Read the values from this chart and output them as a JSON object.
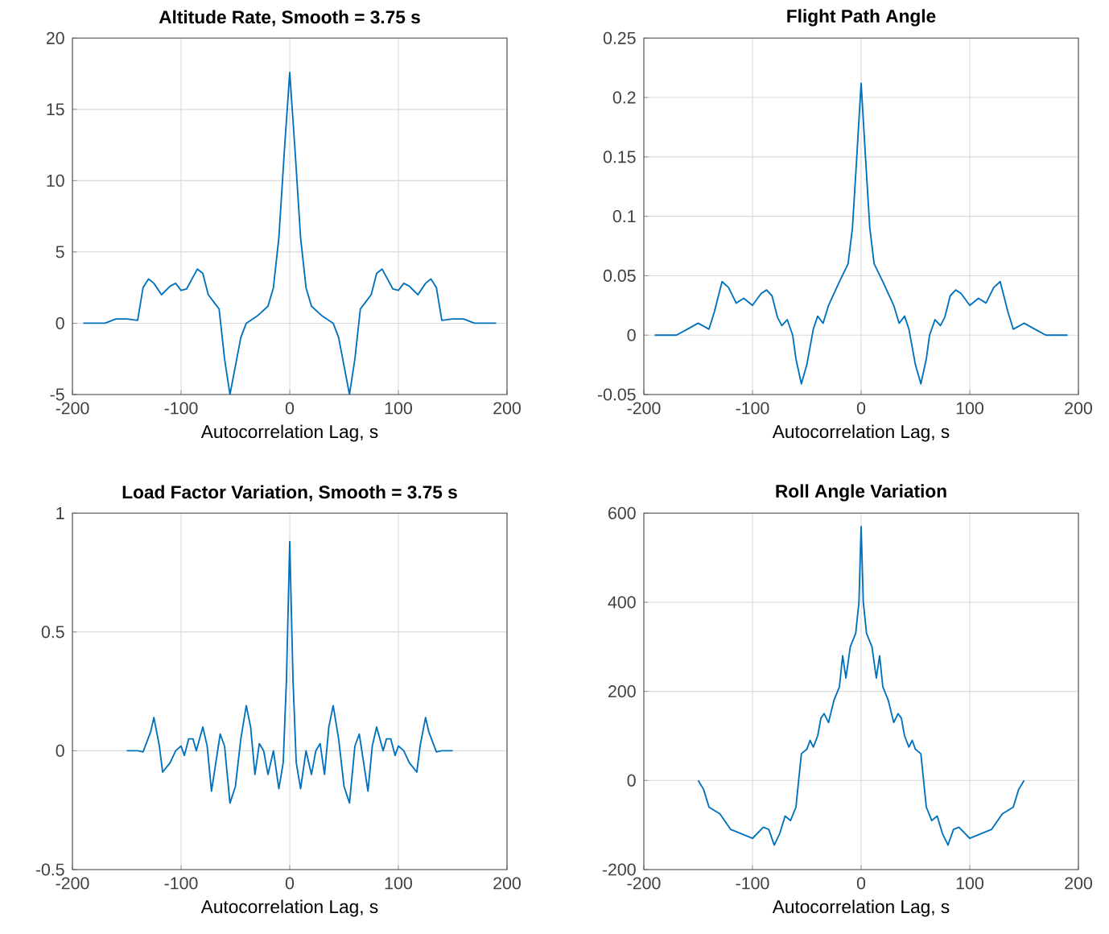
{
  "chart_data": [
    {
      "type": "line",
      "title": "Altitude Rate, Smooth = 3.75 s",
      "xlabel": "Autocorrelation Lag, s",
      "xlim": [
        -200,
        200
      ],
      "xticks": [
        -200,
        -100,
        0,
        100,
        200
      ],
      "ylim": [
        -5,
        20
      ],
      "yticks": [
        -5,
        0,
        5,
        10,
        15,
        20
      ],
      "grid": true,
      "series": [
        {
          "color": "#0072bd",
          "x": [
            -190,
            -170,
            -160,
            -150,
            -140,
            -135,
            -130,
            -125,
            -118,
            -110,
            -105,
            -100,
            -95,
            -85,
            -80,
            -75,
            -70,
            -65,
            -60,
            -55,
            -50,
            -45,
            -40,
            -30,
            -20,
            -15,
            -10,
            -5,
            0,
            5,
            10,
            15,
            20,
            30,
            40,
            45,
            50,
            55,
            60,
            65,
            70,
            75,
            80,
            85,
            95,
            100,
            105,
            110,
            118,
            125,
            130,
            135,
            140,
            150,
            160,
            170,
            190
          ],
          "values": [
            0,
            0,
            0.3,
            0.3,
            0.2,
            2.5,
            3.1,
            2.8,
            2.0,
            2.6,
            2.8,
            2.3,
            2.4,
            3.8,
            3.5,
            2.0,
            1.5,
            1.0,
            -2.5,
            -5.0,
            -3.0,
            -1.0,
            0,
            0.5,
            1.2,
            2.5,
            6,
            12,
            17.6,
            12,
            6,
            2.5,
            1.2,
            0.5,
            0,
            -1.0,
            -3.0,
            -5.0,
            -2.5,
            1.0,
            1.5,
            2.0,
            3.5,
            3.8,
            2.4,
            2.3,
            2.8,
            2.6,
            2.0,
            2.8,
            3.1,
            2.5,
            0.2,
            0.3,
            0.3,
            0,
            0
          ]
        }
      ]
    },
    {
      "type": "line",
      "title": "Flight Path Angle",
      "xlabel": "Autocorrelation Lag, s",
      "xlim": [
        -200,
        200
      ],
      "xticks": [
        -200,
        -100,
        0,
        100,
        200
      ],
      "ylim": [
        -0.05,
        0.25
      ],
      "yticks": [
        -0.05,
        0,
        0.05,
        0.1,
        0.15,
        0.2,
        0.25
      ],
      "grid": true,
      "series": [
        {
          "color": "#0072bd",
          "x": [
            -190,
            -170,
            -160,
            -150,
            -140,
            -135,
            -128,
            -122,
            -115,
            -108,
            -100,
            -92,
            -87,
            -82,
            -77,
            -73,
            -68,
            -63,
            -60,
            -55,
            -50,
            -44,
            -40,
            -35,
            -30,
            -20,
            -12,
            -8,
            -4,
            0,
            4,
            8,
            12,
            20,
            30,
            35,
            40,
            44,
            50,
            55,
            60,
            63,
            68,
            73,
            77,
            82,
            87,
            92,
            100,
            108,
            115,
            122,
            128,
            135,
            140,
            150,
            160,
            170,
            190
          ],
          "values": [
            0,
            0,
            0.005,
            0.01,
            0.005,
            0.02,
            0.045,
            0.04,
            0.027,
            0.031,
            0.025,
            0.035,
            0.038,
            0.033,
            0.015,
            0.008,
            0.013,
            0,
            -0.02,
            -0.041,
            -0.025,
            0.005,
            0.016,
            0.01,
            0.025,
            0.045,
            0.06,
            0.09,
            0.15,
            0.212,
            0.15,
            0.09,
            0.06,
            0.045,
            0.025,
            0.01,
            0.016,
            0.005,
            -0.025,
            -0.041,
            -0.02,
            0,
            0.013,
            0.008,
            0.015,
            0.033,
            0.038,
            0.035,
            0.025,
            0.031,
            0.027,
            0.04,
            0.045,
            0.02,
            0.005,
            0.01,
            0.005,
            0,
            0
          ]
        }
      ]
    },
    {
      "type": "line",
      "title": "Load Factor Variation, Smooth = 3.75 s",
      "xlabel": "Autocorrelation Lag, s",
      "xlim": [
        -200,
        200
      ],
      "xticks": [
        -200,
        -100,
        0,
        100,
        200
      ],
      "ylim": [
        -0.5,
        1
      ],
      "yticks": [
        -0.5,
        0,
        0.5,
        1
      ],
      "grid": true,
      "series": [
        {
          "color": "#0072bd",
          "x": [
            -150,
            -140,
            -135,
            -128,
            -125,
            -120,
            -117,
            -110,
            -105,
            -100,
            -97,
            -93,
            -89,
            -86,
            -80,
            -76,
            -72,
            -68,
            -64,
            -60,
            -55,
            -50,
            -45,
            -40,
            -36,
            -32,
            -28,
            -24,
            -20,
            -15,
            -10,
            -6,
            -3,
            0,
            3,
            6,
            10,
            15,
            20,
            24,
            28,
            32,
            36,
            40,
            45,
            50,
            55,
            60,
            64,
            68,
            72,
            76,
            80,
            86,
            89,
            93,
            97,
            100,
            105,
            110,
            117,
            120,
            125,
            128,
            135,
            140,
            150
          ],
          "values": [
            0,
            0,
            -0.005,
            0.08,
            0.14,
            0.02,
            -0.09,
            -0.05,
            0,
            0.02,
            -0.02,
            0.05,
            0.05,
            0,
            0.1,
            0.02,
            -0.17,
            -0.05,
            0.07,
            0.02,
            -0.22,
            -0.15,
            0.05,
            0.19,
            0.1,
            -0.1,
            0.03,
            0,
            -0.1,
            0,
            -0.16,
            -0.05,
            0.3,
            0.88,
            0.3,
            -0.05,
            -0.16,
            0,
            -0.1,
            0,
            0.03,
            -0.1,
            0.1,
            0.19,
            0.05,
            -0.15,
            -0.22,
            0.02,
            0.07,
            -0.05,
            -0.17,
            0.02,
            0.1,
            0,
            0.05,
            0.05,
            -0.02,
            0.02,
            0,
            -0.05,
            -0.09,
            0.02,
            0.14,
            0.08,
            -0.005,
            0,
            0
          ]
        }
      ]
    },
    {
      "type": "line",
      "title": "Roll Angle Variation",
      "xlabel": "Autocorrelation Lag, s",
      "xlim": [
        -200,
        200
      ],
      "xticks": [
        -200,
        -100,
        0,
        100,
        200
      ],
      "ylim": [
        -200,
        600
      ],
      "yticks": [
        -200,
        0,
        200,
        400,
        600
      ],
      "grid": true,
      "series": [
        {
          "color": "#0072bd",
          "x": [
            -150,
            -145,
            -140,
            -130,
            -120,
            -110,
            -100,
            -90,
            -85,
            -80,
            -75,
            -70,
            -65,
            -60,
            -55,
            -50,
            -47,
            -44,
            -40,
            -37,
            -34,
            -30,
            -25,
            -20,
            -17,
            -14,
            -10,
            -5,
            -2,
            0,
            2,
            5,
            10,
            14,
            17,
            20,
            25,
            30,
            34,
            37,
            40,
            44,
            47,
            50,
            55,
            60,
            65,
            70,
            75,
            80,
            85,
            90,
            100,
            110,
            120,
            130,
            140,
            145,
            150
          ],
          "values": [
            0,
            -20,
            -60,
            -75,
            -110,
            -120,
            -130,
            -105,
            -110,
            -145,
            -120,
            -80,
            -90,
            -60,
            60,
            70,
            90,
            75,
            100,
            140,
            150,
            130,
            180,
            210,
            280,
            230,
            300,
            330,
            400,
            570,
            400,
            330,
            300,
            230,
            280,
            210,
            180,
            130,
            150,
            140,
            100,
            75,
            90,
            70,
            60,
            -60,
            -90,
            -80,
            -120,
            -145,
            -110,
            -105,
            -130,
            -120,
            -110,
            -75,
            -60,
            -20,
            0
          ]
        }
      ]
    }
  ]
}
